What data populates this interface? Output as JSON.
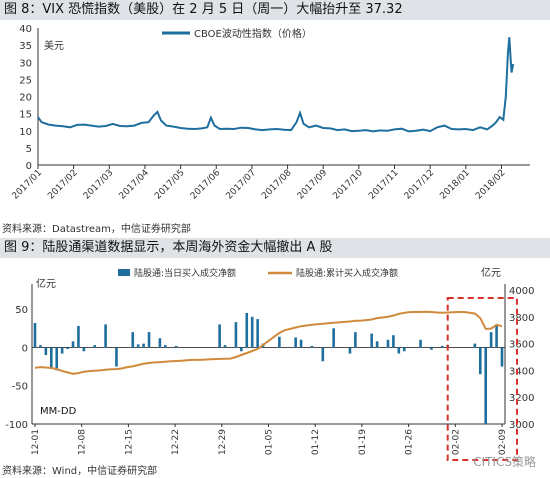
{
  "figure1": {
    "title": "图 8：VIX 恐慌指数（美股）在 2 月 5 日（周一）大幅抬升至 37.32",
    "source": "资料来源：Datastream，中信证券研究部"
  },
  "figure2": {
    "title": "图 9：陆股通渠道数据显示，本周海外资金大幅撤出 A 股",
    "source": "资料来源：Wind，中信证券研究部"
  },
  "watermark": "CITICS策略",
  "colors": {
    "vix": "#1f6f9e",
    "bar": "#1f6f9e",
    "cumline": "#d08a3c",
    "highlight": "#d9312b",
    "title_bg": "#dfe3e8"
  },
  "chart_data": [
    {
      "type": "line",
      "ylabel": "美元",
      "ylim": [
        0,
        40
      ],
      "yticks": [
        "0",
        "5",
        "10",
        "15",
        "20",
        "25",
        "30",
        "35",
        "40"
      ],
      "xlim": [
        0,
        13.8
      ],
      "xticks": [
        "2017/01",
        "2017/02",
        "2017/03",
        "2017/04",
        "2017/05",
        "2017/06",
        "2017/07",
        "2017/08",
        "2017/09",
        "2017/10",
        "2017/11",
        "2017/12",
        "2018/01",
        "2018/02"
      ],
      "legend_position": "top",
      "series": [
        {
          "name": "CBOE波动性指数（价格）",
          "x": [
            0,
            0.1,
            0.3,
            0.5,
            0.7,
            0.9,
            1.1,
            1.3,
            1.5,
            1.7,
            1.9,
            2.1,
            2.3,
            2.5,
            2.7,
            2.9,
            3.1,
            3.25,
            3.35,
            3.45,
            3.6,
            3.8,
            4.0,
            4.2,
            4.4,
            4.6,
            4.75,
            4.85,
            4.95,
            5.1,
            5.3,
            5.5,
            5.7,
            5.9,
            6.1,
            6.3,
            6.5,
            6.7,
            6.9,
            7.1,
            7.25,
            7.35,
            7.45,
            7.6,
            7.8,
            8.0,
            8.2,
            8.4,
            8.6,
            8.8,
            9.0,
            9.2,
            9.4,
            9.6,
            9.8,
            10.0,
            10.2,
            10.4,
            10.6,
            10.8,
            11.0,
            11.2,
            11.4,
            11.6,
            11.8,
            12.0,
            12.2,
            12.4,
            12.6,
            12.75,
            12.85,
            12.95,
            13.05,
            13.12,
            13.18,
            13.22,
            13.28,
            13.33
          ],
          "values": [
            14.0,
            12.5,
            11.8,
            11.5,
            11.3,
            11.0,
            11.7,
            11.8,
            11.5,
            11.2,
            11.4,
            12.0,
            11.4,
            11.3,
            11.5,
            12.3,
            12.5,
            14.5,
            15.5,
            13.0,
            11.5,
            11.2,
            10.8,
            10.6,
            10.5,
            10.7,
            11.0,
            13.8,
            11.5,
            10.5,
            10.6,
            10.5,
            10.9,
            10.8,
            10.4,
            10.2,
            10.4,
            10.5,
            10.3,
            10.2,
            12.5,
            15.2,
            12.0,
            11.0,
            11.5,
            10.8,
            10.7,
            10.2,
            10.4,
            9.9,
            10.0,
            10.2,
            9.8,
            10.1,
            10.0,
            10.4,
            10.6,
            9.8,
            10.0,
            10.3,
            9.9,
            11.0,
            11.5,
            10.5,
            10.4,
            10.5,
            10.2,
            11.0,
            10.4,
            11.5,
            12.5,
            14.0,
            13.2,
            20.0,
            32.5,
            37.3,
            27.0,
            29.5
          ]
        }
      ]
    },
    {
      "type": "bar",
      "ylabel_left": "亿元",
      "ylabel_right": "亿元",
      "ylim_left": [
        -100,
        75
      ],
      "ylim_right": [
        3000,
        4000
      ],
      "yticks_left": [
        "50",
        "0",
        "-50",
        "-100"
      ],
      "yticks_right": [
        "4000",
        "3800",
        "3600",
        "3400",
        "3200",
        "3000"
      ],
      "x_format_note": "MM-DD",
      "xticks": [
        "12-01",
        "12-08",
        "12-15",
        "12-22",
        "12-29",
        "01-05",
        "01-12",
        "01-19",
        "01-26",
        "02-02",
        "02-09"
      ],
      "legend_position": "top",
      "series": [
        {
          "name": "陆股通:当日买入成交净额",
          "values": [
            32,
            3,
            -10,
            -28,
            -30,
            -8,
            -2,
            8,
            28,
            -5,
            0,
            3,
            0,
            30,
            0,
            -25,
            0,
            0,
            20,
            4,
            5,
            20,
            0,
            12,
            3,
            0,
            2,
            0,
            0,
            0,
            0,
            0,
            0,
            0,
            30,
            3,
            0,
            33,
            -5,
            45,
            40,
            37,
            5,
            0,
            0,
            14,
            0,
            0,
            13,
            10,
            0,
            2,
            0,
            -18,
            0,
            25,
            0,
            0,
            -8,
            20,
            0,
            0,
            18,
            8,
            0,
            10,
            16,
            -8,
            -5,
            0,
            0,
            10,
            0,
            -3,
            0,
            2,
            3,
            0,
            0,
            0,
            0,
            5,
            -35,
            -100,
            20,
            30,
            -25
          ]
        },
        {
          "name": "陆股通:累计买入成交净额",
          "values": [
            3420,
            3425,
            3422,
            3418,
            3410,
            3395,
            3385,
            3375,
            3380,
            3390,
            3395,
            3398,
            3400,
            3405,
            3408,
            3410,
            3415,
            3425,
            3430,
            3440,
            3450,
            3455,
            3460,
            3462,
            3465,
            3468,
            3470,
            3472,
            3475,
            3478,
            3478,
            3480,
            3482,
            3484,
            3486,
            3487,
            3488,
            3500,
            3515,
            3530,
            3545,
            3560,
            3590,
            3620,
            3650,
            3680,
            3700,
            3710,
            3720,
            3730,
            3735,
            3740,
            3745,
            3748,
            3752,
            3755,
            3758,
            3762,
            3765,
            3770,
            3772,
            3775,
            3780,
            3790,
            3795,
            3800,
            3810,
            3822,
            3830,
            3835,
            3836,
            3836,
            3838,
            3836,
            3832,
            3830,
            3832,
            3834,
            3836,
            3836,
            3830,
            3825,
            3790,
            3710,
            3712,
            3740,
            3730
          ]
        }
      ]
    }
  ]
}
